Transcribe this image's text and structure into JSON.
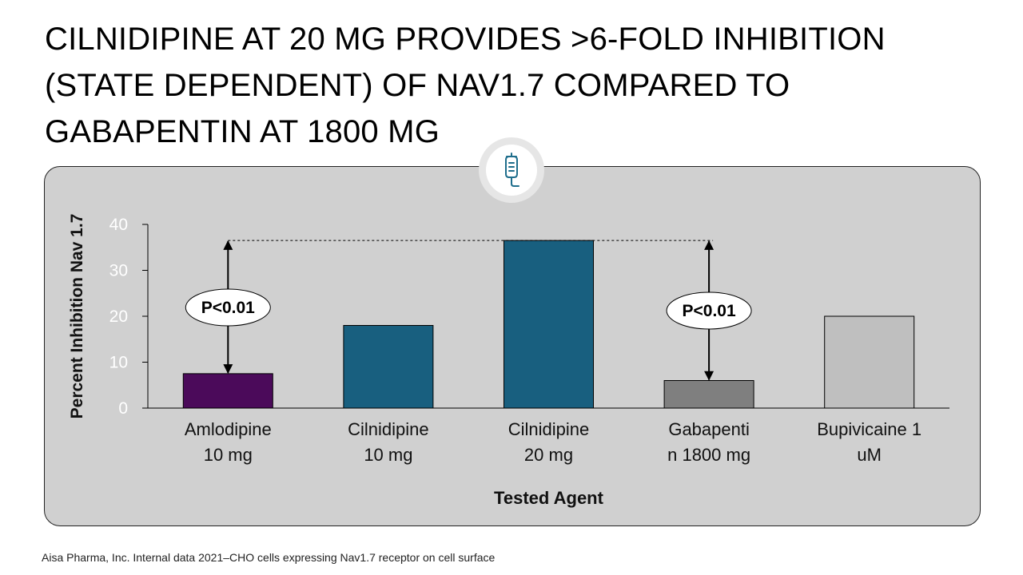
{
  "title": {
    "line1": "CILNIDIPINE AT 20 MG PROVIDES >6-FOLD INHIBITION",
    "line2": "(STATE DEPENDENT)  OF NAV1.7 COMPARED TO",
    "line3": "GABAPENTIN AT 1800 MG"
  },
  "badge": {
    "icon": "iv-drip-icon",
    "color": "#1f6e8c"
  },
  "chart_data": {
    "type": "bar",
    "title": "",
    "xlabel": "Tested Agent",
    "ylabel": "Percent Inhibition Nav 1.7",
    "ylim": [
      0,
      40
    ],
    "yticks": [
      "0",
      "10",
      "20",
      "30",
      "40"
    ],
    "categories": [
      [
        "Amlodipine",
        "10 mg"
      ],
      [
        "Cilnidipine",
        "10 mg"
      ],
      [
        "Cilnidipine",
        "20 mg"
      ],
      [
        "Gabapenti",
        "n 1800 mg"
      ],
      [
        "Bupivicaine 1",
        "uM"
      ]
    ],
    "values": [
      7.5,
      18,
      36.5,
      6,
      20
    ],
    "colors": [
      "#4b0a5a",
      "#185f7f",
      "#185f7f",
      "#7f7f7f",
      "#bfbfbf"
    ],
    "annotations": [
      {
        "label": "P<0.01",
        "from_category": 0,
        "from_value": 7.5,
        "to_value": 36.5
      },
      {
        "label": "P<0.01",
        "from_category": 3,
        "from_value": 6,
        "to_value": 36.5
      }
    ],
    "reference_line": 36.5,
    "grid": false,
    "legend": "none"
  },
  "footnote": "Aisa Pharma, Inc. Internal data 2021–CHO cells expressing Nav1.7 receptor on cell surface"
}
